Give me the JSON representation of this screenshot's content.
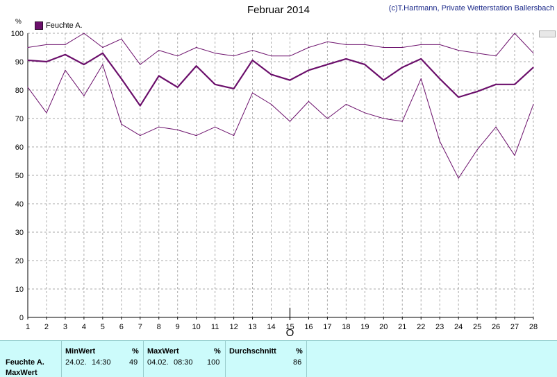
{
  "header": {
    "title": "Februar 2014",
    "copyright": "(c)T.Hartmann, Private Wetterstation Ballersbach",
    "unit": "%"
  },
  "legend": {
    "label": "Feuchte A."
  },
  "chart_data": {
    "type": "line",
    "title": "Februar 2014",
    "ylabel": "%",
    "xlabel": "",
    "x": [
      1,
      2,
      3,
      4,
      5,
      6,
      7,
      8,
      9,
      10,
      11,
      12,
      13,
      14,
      15,
      16,
      17,
      18,
      19,
      20,
      21,
      22,
      23,
      24,
      25,
      26,
      27,
      28
    ],
    "xlim": [
      1,
      28
    ],
    "ylim": [
      0,
      100
    ],
    "yticks": [
      0,
      10,
      20,
      30,
      40,
      50,
      60,
      70,
      80,
      90,
      100
    ],
    "grid": true,
    "legend_position": "top-left",
    "colors": {
      "line": "#6b0f6b",
      "grid": "#aaaaaa",
      "axis": "#000000"
    },
    "series": [
      {
        "name": "Feuchte A.",
        "values": [
          90.5,
          90,
          92.5,
          89,
          93,
          84,
          74.5,
          85,
          81,
          88.5,
          82,
          80.5,
          90.5,
          85.5,
          83.5,
          87,
          89,
          91,
          89,
          83.5,
          88,
          91,
          84,
          77.5,
          79.5,
          82,
          82,
          88
        ]
      },
      {
        "values": [
          95,
          96,
          96,
          100,
          95,
          98,
          89,
          94,
          92,
          95,
          93,
          92,
          94,
          92,
          92,
          95,
          97,
          96,
          96,
          95,
          95,
          96,
          96,
          94,
          93,
          92,
          100,
          93
        ]
      },
      {
        "values": [
          81,
          72,
          87,
          78,
          89,
          68,
          64,
          67,
          66,
          64,
          67,
          64,
          79,
          75,
          69,
          76,
          70,
          75,
          72,
          70,
          69,
          84,
          62,
          49,
          59,
          67,
          57,
          75
        ]
      }
    ],
    "marker": {
      "x": 15,
      "label": "O"
    }
  },
  "stats": {
    "row_label": "Feuchte A.",
    "row_label2": "MaxWert",
    "min": {
      "header": "MinWert",
      "unit": "%",
      "date": "24.02.",
      "time": "14:30",
      "value": "49"
    },
    "max": {
      "header": "MaxWert",
      "unit": "%",
      "date": "04.02.",
      "time": "08:30",
      "value": "100"
    },
    "avg": {
      "header": "Durchschnitt",
      "unit": "%",
      "value": "86"
    }
  }
}
